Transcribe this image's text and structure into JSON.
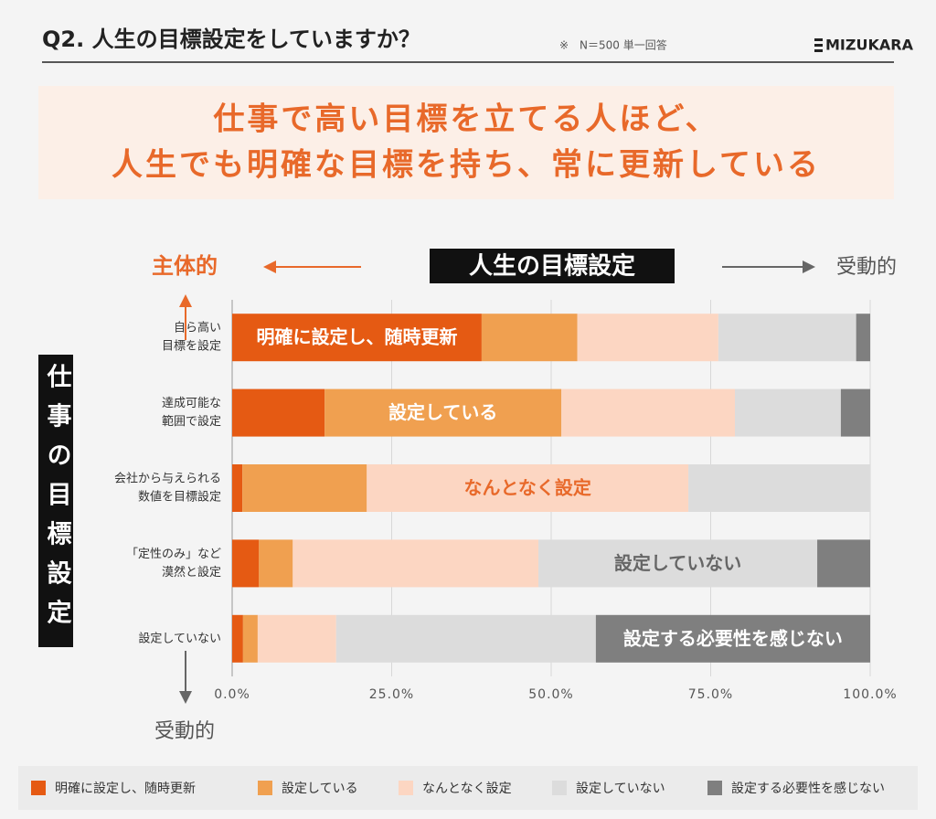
{
  "header": {
    "title": "Q2. 人生の目標設定をしていますか？",
    "note": "※　N＝500 単一回答",
    "logo": "MIZUKARA"
  },
  "headline": [
    "仕事で高い目標を立てる人ほど、",
    "人生でも明確な目標を持ち、常に更新している"
  ],
  "chart_data": {
    "type": "stacked-bar-horizontal",
    "x_title": "人生の目標設定",
    "x_left_label": "主体的",
    "x_right_label": "受動的",
    "y_title": "仕事の目標設定",
    "y_bottom_label": "受動的",
    "categories": [
      [
        "自ら高い",
        "目標を設定"
      ],
      [
        "達成可能な",
        "範囲で設定"
      ],
      [
        "会社から与えられる",
        "数値を目標設定"
      ],
      [
        "「定性のみ」など",
        "漠然と設定"
      ],
      [
        "設定していない"
      ]
    ],
    "series": [
      {
        "name": "明確に設定し、随時更新",
        "color": "#e55a13",
        "label_color": "#ffffff",
        "values": [
          39.1,
          14.5,
          1.6,
          4.2,
          1.7
        ]
      },
      {
        "name": "設定している",
        "color": "#f0a050",
        "label_color": "#ffffff",
        "values": [
          15.0,
          37.1,
          19.5,
          5.3,
          2.3
        ]
      },
      {
        "name": "なんとなく設定",
        "color": "#fcd6c2",
        "label_color": "#e8692a",
        "values": [
          22.1,
          27.2,
          50.4,
          38.5,
          12.3
        ]
      },
      {
        "name": "設定していない",
        "color": "#dcdcdc",
        "label_color": "#666666",
        "values": [
          21.6,
          16.6,
          28.5,
          43.7,
          40.7
        ]
      },
      {
        "name": "設定する必要性を感じない",
        "color": "#7f7f7f",
        "label_color": "#ffffff",
        "values": [
          2.2,
          4.6,
          0,
          8.3,
          43.0
        ]
      }
    ],
    "xlim": [
      0,
      100
    ],
    "xticks": [
      {
        "value": 0,
        "label": "0.0%"
      },
      {
        "value": 25,
        "label": "25.0%"
      },
      {
        "value": 50,
        "label": "50.0%"
      },
      {
        "value": 75,
        "label": "75.0%"
      },
      {
        "value": 100,
        "label": "100.0%"
      }
    ],
    "grid": true
  }
}
